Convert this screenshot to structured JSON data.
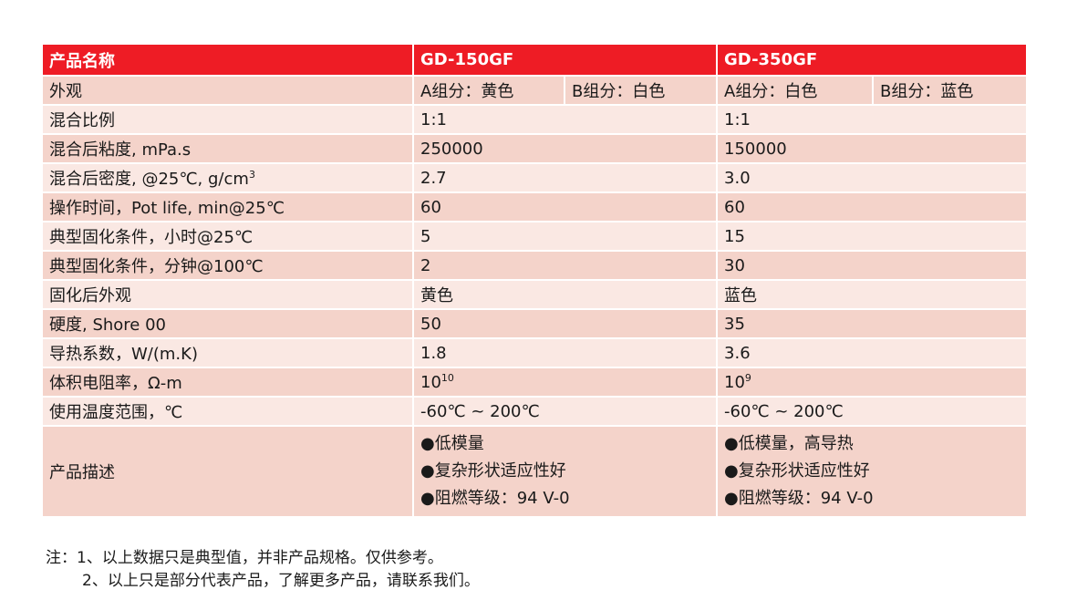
{
  "header": {
    "name_label": "产品名称",
    "product1": "GD-150GF",
    "product2": "GD-350GF"
  },
  "rows": [
    {
      "label": "外观",
      "p1a": "A组分：黄色",
      "p1b": "B组分：白色",
      "p2a": "A组分：白色",
      "p2b": "B组分：蓝色"
    },
    {
      "label": "混合比例",
      "p1": "1:1",
      "p2": "1:1"
    },
    {
      "label": "混合后粘度, mPa.s",
      "p1": "250000",
      "p2": "150000"
    },
    {
      "label": "混合后密度, @25℃, g/cm",
      "label_sup": "3",
      "p1": "2.7",
      "p2": "3.0"
    },
    {
      "label": "操作时间，Pot life, min@25℃",
      "p1": "60",
      "p2": "60"
    },
    {
      "label": "典型固化条件，小时@25℃",
      "p1": "5",
      "p2": "15"
    },
    {
      "label": "典型固化条件，分钟@100℃",
      "p1": "2",
      "p2": "30"
    },
    {
      "label": "固化后外观",
      "p1": "黄色",
      "p2": "蓝色"
    },
    {
      "label": "硬度, Shore 00",
      "p1": "50",
      "p2": "35"
    },
    {
      "label": "导热系数，W/(m.K)",
      "p1": "1.8",
      "p2": "3.6"
    },
    {
      "label": "体积电阻率，Ω-m",
      "p1": "10",
      "p1_sup": "10",
      "p2": "10",
      "p2_sup": "9"
    },
    {
      "label": "使用温度范围，℃",
      "p1": "-60℃ ~ 200℃",
      "p2": "-60℃ ~ 200℃"
    }
  ],
  "description": {
    "label": "产品描述",
    "p1": [
      "●低模量",
      "●复杂形状适应性好",
      "●阻燃等级：94 V-0"
    ],
    "p2": [
      "●低模量，高导热",
      "●复杂形状适应性好",
      "●阻燃等级：94 V-0"
    ]
  },
  "notes": {
    "line1": "注：1、以上数据只是典型值，并非产品规格。仅供参考。",
    "line2": "2、以上只是部分代表产品，了解更多产品，请联系我们。"
  },
  "colors": {
    "header": "#ee1c25",
    "row_dark": "#f4d3ca",
    "row_light": "#fae8e3"
  }
}
